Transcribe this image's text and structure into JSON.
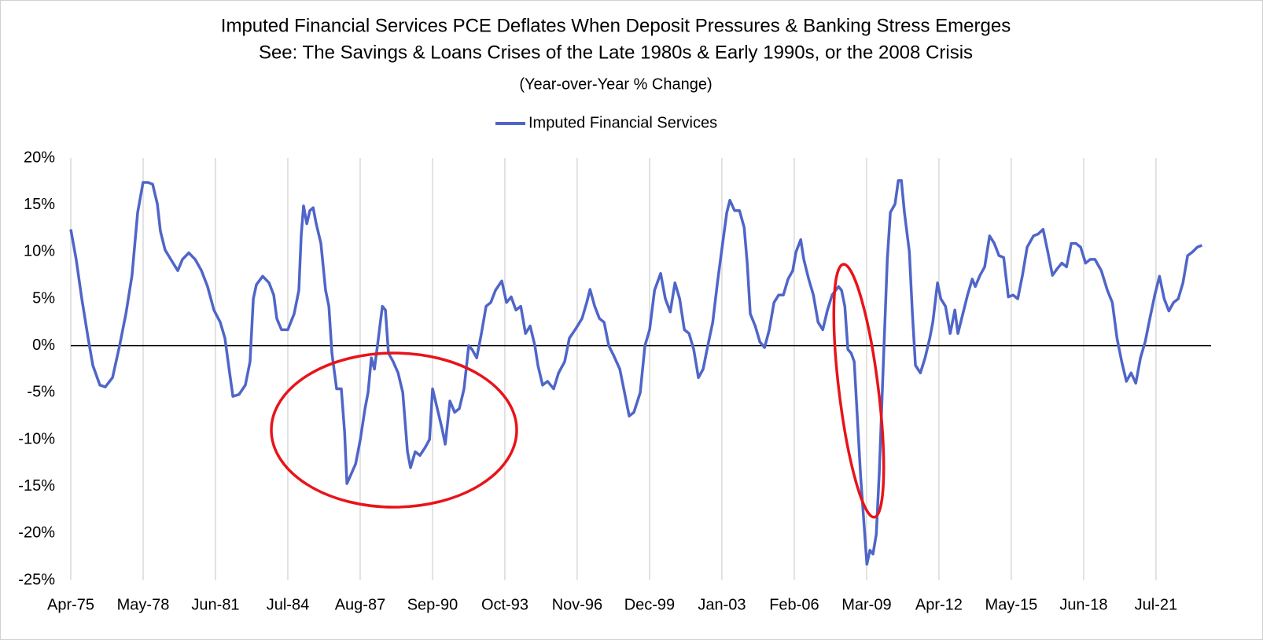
{
  "chart_data": {
    "type": "line",
    "title": "Imputed Financial Services PCE  Deflates When Deposit Pressures & Banking Stress Emerges",
    "subtitle": "See: The Savings & Loans Crises of the Late 1980s & Early 1990s, or the 2008 Crisis",
    "note": "(Year-over-Year % Change)",
    "xlim": [
      1975.25,
      2023.85
    ],
    "xticks": [
      {
        "value": 1975.25,
        "label": "Apr-75"
      },
      {
        "value": 1978.333,
        "label": "May-78"
      },
      {
        "value": 1981.417,
        "label": "Jun-81"
      },
      {
        "value": 1984.5,
        "label": "Jul-84"
      },
      {
        "value": 1987.583,
        "label": "Aug-87"
      },
      {
        "value": 1990.667,
        "label": "Sep-90"
      },
      {
        "value": 1993.75,
        "label": "Oct-93"
      },
      {
        "value": 1996.833,
        "label": "Nov-96"
      },
      {
        "value": 1999.917,
        "label": "Dec-99"
      },
      {
        "value": 2003.0,
        "label": "Jan-03"
      },
      {
        "value": 2006.083,
        "label": "Feb-06"
      },
      {
        "value": 2009.167,
        "label": "Mar-09"
      },
      {
        "value": 2012.25,
        "label": "Apr-12"
      },
      {
        "value": 2015.333,
        "label": "May-15"
      },
      {
        "value": 2018.417,
        "label": "Jun-18"
      },
      {
        "value": 2021.5,
        "label": "Jul-21"
      }
    ],
    "ylim": [
      -25,
      20
    ],
    "yticks": [
      {
        "value": -25,
        "label": "-25%"
      },
      {
        "value": -20,
        "label": "-20%"
      },
      {
        "value": -15,
        "label": "-15%"
      },
      {
        "value": -10,
        "label": "-10%"
      },
      {
        "value": -5,
        "label": "-5%"
      },
      {
        "value": 0,
        "label": "0%"
      },
      {
        "value": 5,
        "label": "5%"
      },
      {
        "value": 10,
        "label": "10%"
      },
      {
        "value": 15,
        "label": "15%"
      },
      {
        "value": 20,
        "label": "20%"
      }
    ],
    "grid": "x",
    "legend": "top",
    "x": [
      1975.25,
      1975.48,
      1975.72,
      1975.99,
      1976.19,
      1976.49,
      1976.72,
      1977.03,
      1977.33,
      1977.6,
      1977.86,
      1978.1,
      1978.33,
      1978.54,
      1978.74,
      1978.94,
      1979.07,
      1979.27,
      1979.61,
      1979.81,
      1980.01,
      1980.28,
      1980.55,
      1980.82,
      1981.08,
      1981.35,
      1981.62,
      1981.82,
      1982.02,
      1982.16,
      1982.42,
      1982.69,
      1982.89,
      1983.03,
      1983.16,
      1983.43,
      1983.7,
      1983.9,
      1984.03,
      1984.23,
      1984.5,
      1984.77,
      1984.97,
      1985.07,
      1985.17,
      1985.31,
      1985.44,
      1985.58,
      1985.71,
      1985.91,
      1986.11,
      1986.25,
      1986.38,
      1986.58,
      1986.78,
      1986.92,
      1987.02,
      1987.18,
      1987.39,
      1987.59,
      1987.79,
      1987.92,
      1988.06,
      1988.19,
      1988.32,
      1988.53,
      1988.66,
      1988.79,
      1988.99,
      1989.2,
      1989.4,
      1989.6,
      1989.73,
      1989.93,
      1990.13,
      1990.34,
      1990.54,
      1990.67,
      1990.87,
      1991.07,
      1991.21,
      1991.41,
      1991.61,
      1991.81,
      1992.01,
      1992.21,
      1992.35,
      1992.55,
      1992.75,
      1992.95,
      1993.15,
      1993.35,
      1993.62,
      1993.82,
      1994.02,
      1994.22,
      1994.43,
      1994.63,
      1994.83,
      1995.03,
      1995.16,
      1995.36,
      1995.57,
      1995.83,
      1996.04,
      1996.3,
      1996.5,
      1996.77,
      1997.04,
      1997.24,
      1997.38,
      1997.58,
      1997.78,
      1997.98,
      1998.18,
      1998.38,
      1998.65,
      1998.85,
      1999.05,
      1999.25,
      1999.52,
      1999.72,
      1999.92,
      2000.13,
      2000.39,
      2000.59,
      2000.8,
      2001.0,
      2001.2,
      2001.4,
      2001.6,
      2001.8,
      2002.0,
      2002.2,
      2002.4,
      2002.61,
      2002.81,
      2003.01,
      2003.21,
      2003.34,
      2003.54,
      2003.75,
      2003.95,
      2004.08,
      2004.21,
      2004.42,
      2004.62,
      2004.82,
      2005.02,
      2005.22,
      2005.42,
      2005.62,
      2005.82,
      2006.02,
      2006.16,
      2006.36,
      2006.49,
      2006.7,
      2006.9,
      2007.1,
      2007.3,
      2007.5,
      2007.7,
      2007.97,
      2008.1,
      2008.24,
      2008.37,
      2008.51,
      2008.64,
      2008.77,
      2008.91,
      2009.04,
      2009.18,
      2009.31,
      2009.44,
      2009.58,
      2009.71,
      2009.91,
      2010.05,
      2010.18,
      2010.38,
      2010.52,
      2010.65,
      2010.78,
      2010.99,
      2011.12,
      2011.25,
      2011.46,
      2011.66,
      2011.86,
      2011.99,
      2012.19,
      2012.33,
      2012.53,
      2012.73,
      2012.93,
      2013.06,
      2013.27,
      2013.47,
      2013.67,
      2013.8,
      2014.0,
      2014.2,
      2014.41,
      2014.61,
      2014.81,
      2015.01,
      2015.21,
      2015.41,
      2015.61,
      2015.81,
      2016.01,
      2016.28,
      2016.48,
      2016.69,
      2016.89,
      2017.09,
      2017.29,
      2017.49,
      2017.69,
      2017.89,
      2018.09,
      2018.29,
      2018.5,
      2018.7,
      2018.9,
      2019.17,
      2019.43,
      2019.64,
      2019.84,
      2020.04,
      2020.24,
      2020.44,
      2020.64,
      2020.84,
      2021.04,
      2021.24,
      2021.45,
      2021.65,
      2021.85,
      2022.05,
      2022.25,
      2022.45,
      2022.65,
      2022.85,
      2023.06,
      2023.26,
      2023.46
    ],
    "series": [
      {
        "name": "Imputed Financial Services",
        "color": "#4f65c8",
        "values": [
          12.4,
          9.2,
          5,
          0.8,
          -2.1,
          -4.2,
          -4.4,
          -3.4,
          0,
          3.4,
          7.5,
          14.2,
          17.4,
          17.4,
          17.2,
          15.1,
          12.2,
          10.2,
          8.8,
          8,
          9.2,
          9.9,
          9.2,
          8,
          6.3,
          3.8,
          2.5,
          0.8,
          -2.9,
          -5.4,
          -5.2,
          -4.2,
          -1.7,
          5,
          6.5,
          7.4,
          6.7,
          5.4,
          2.9,
          1.7,
          1.7,
          3.4,
          5.9,
          11.7,
          14.9,
          13,
          14.4,
          14.7,
          13,
          10.9,
          5.9,
          4.2,
          -0.8,
          -4.6,
          -4.6,
          -9.2,
          -14.7,
          -13.8,
          -12.6,
          -10,
          -6.7,
          -5,
          -1.3,
          -2.5,
          0,
          4.2,
          3.8,
          -0.8,
          -1.7,
          -2.9,
          -5,
          -11.3,
          -13,
          -11.3,
          -11.7,
          -10.9,
          -10,
          -4.6,
          -6.7,
          -8.8,
          -10.5,
          -5.9,
          -7.1,
          -6.7,
          -4.6,
          0,
          -0.4,
          -1.3,
          1.3,
          4.2,
          4.6,
          5.9,
          6.9,
          4.6,
          5.2,
          3.8,
          4.2,
          1.3,
          2.1,
          0,
          -2.1,
          -4.2,
          -3.8,
          -4.6,
          -2.9,
          -1.7,
          0.8,
          1.8,
          2.9,
          4.6,
          6,
          4.2,
          2.9,
          2.5,
          0,
          -1,
          -2.5,
          -5,
          -7.5,
          -7.1,
          -5,
          0,
          1.7,
          5.9,
          7.7,
          5,
          3.6,
          6.7,
          5,
          1.7,
          1.3,
          -0.4,
          -3.4,
          -2.5,
          0,
          2.5,
          6.7,
          10.5,
          14.2,
          15.5,
          14.4,
          14.4,
          12.6,
          8.8,
          3.4,
          2.1,
          0.4,
          -0.2,
          1.7,
          4.6,
          5.4,
          5.4,
          7.1,
          8,
          10,
          11.3,
          9.2,
          7.1,
          5.4,
          2.5,
          1.7,
          3.8,
          5.4,
          6.3,
          5.9,
          4.2,
          -0.4,
          -0.8,
          -1.7,
          -7.5,
          -13.8,
          -18.4,
          -23.3,
          -21.8,
          -22.2,
          -20.1,
          -13.4,
          0,
          9.2,
          14.2,
          15.1,
          17.6,
          17.6,
          14.2,
          10,
          3.4,
          -2.1,
          -2.9,
          -1.3,
          0.8,
          2.5,
          6.7,
          5,
          4.2,
          1.3,
          3.8,
          1.3,
          3.4,
          5.4,
          7.1,
          6.3,
          7.5,
          8.4,
          11.7,
          10.9,
          9.6,
          9.4,
          5.2,
          5.4,
          5,
          7.5,
          10.5,
          11.7,
          11.9,
          12.4,
          10,
          7.5,
          8.2,
          8.8,
          8.4,
          10.9,
          10.9,
          10.5,
          8.8,
          9.2,
          9.2,
          8,
          5.9,
          4.6,
          0.8,
          -1.7,
          -3.8,
          -2.9,
          -4,
          -1.3,
          0.4,
          2.9,
          5.4,
          7.4,
          5,
          3.7,
          4.6,
          5,
          6.7,
          9.6,
          10,
          10.5,
          10.7
        ]
      }
    ]
  }
}
